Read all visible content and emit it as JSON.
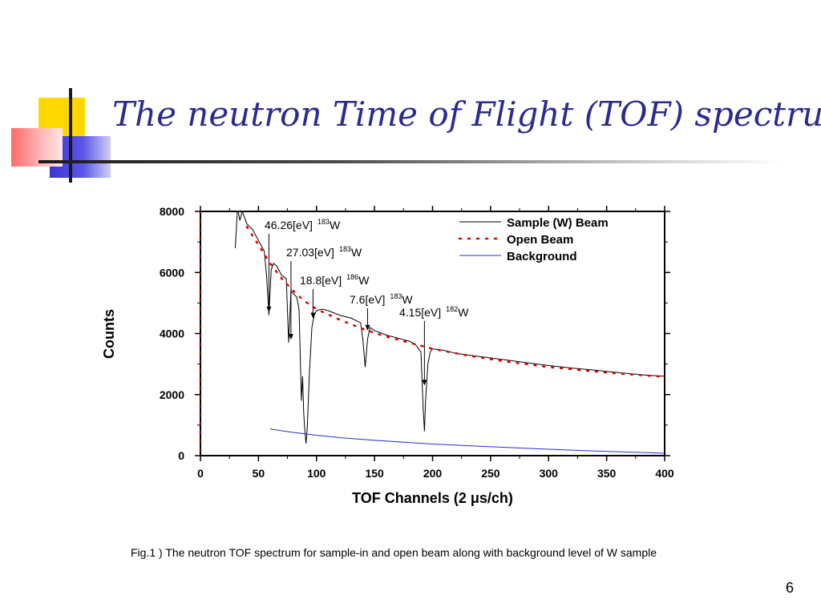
{
  "slide": {
    "title": "The neutron Time of Flight (TOF) spectrum",
    "caption": "Fig.1 ) The neutron TOF spectrum for sample-in and open beam along with background level of W sample",
    "page_number": "6"
  },
  "colors": {
    "title": "#2b2b8f",
    "sample": "#000000",
    "open_beam": "#e00000",
    "background": "#2a2ad8",
    "deco_yellow": "#ffd800",
    "deco_blue": "#3b35d8",
    "deco_red": "#ff6a6a"
  },
  "chart_data": {
    "type": "line",
    "xlabel": "TOF Channels (2 μs/ch)",
    "ylabel": "Counts",
    "xlim": [
      0,
      400
    ],
    "ylim": [
      0,
      8000
    ],
    "x_ticks": [
      "0",
      "50",
      "100",
      "150",
      "200",
      "250",
      "300",
      "350",
      "400"
    ],
    "y_ticks": [
      "0",
      "2000",
      "4000",
      "6000",
      "8000"
    ],
    "grid": false,
    "legend_position": "top-right",
    "series": [
      {
        "name": "Sample (W) Beam",
        "style": "solid",
        "x": [
          30,
          32,
          34,
          36,
          38,
          40,
          45,
          50,
          55,
          57,
          59,
          61,
          63,
          66,
          70,
          74,
          76,
          78,
          80,
          83,
          85,
          87,
          88,
          89,
          90,
          91,
          92,
          94,
          96,
          98,
          100,
          105,
          110,
          120,
          130,
          138,
          140,
          142,
          144,
          146,
          150,
          160,
          170,
          180,
          185,
          190,
          192,
          193,
          194,
          196,
          198,
          200,
          210,
          220,
          240,
          260,
          280,
          300,
          320,
          340,
          360,
          380,
          400
        ],
        "y": [
          6800,
          8100,
          7700,
          8000,
          7800,
          7600,
          7400,
          7050,
          6700,
          5900,
          4600,
          6100,
          6300,
          6200,
          5900,
          5800,
          3700,
          5400,
          5300,
          5200,
          4800,
          1800,
          2600,
          1400,
          800,
          400,
          900,
          2800,
          4200,
          4600,
          4750,
          4800,
          4750,
          4600,
          4500,
          4350,
          3800,
          2900,
          3800,
          4200,
          4100,
          3950,
          3850,
          3750,
          3650,
          3400,
          1500,
          800,
          1800,
          3000,
          3400,
          3500,
          3450,
          3350,
          3250,
          3150,
          3050,
          2950,
          2870,
          2800,
          2720,
          2650,
          2600
        ]
      },
      {
        "name": "Open Beam",
        "style": "dotted",
        "x": [
          40,
          50,
          60,
          70,
          80,
          90,
          100,
          120,
          140,
          160,
          180,
          200,
          230,
          260,
          300,
          350,
          400
        ],
        "y": [
          7500,
          6900,
          6300,
          5800,
          5400,
          5050,
          4800,
          4450,
          4150,
          3900,
          3700,
          3500,
          3280,
          3100,
          2900,
          2720,
          2580
        ]
      },
      {
        "name": "Background",
        "style": "solid",
        "x": [
          60,
          80,
          100,
          120,
          150,
          200,
          250,
          300,
          350,
          400
        ],
        "y": [
          870,
          760,
          670,
          590,
          500,
          380,
          290,
          210,
          140,
          80
        ]
      }
    ],
    "annotations": [
      {
        "energy": "46.26[eV]",
        "mass": "183",
        "element": "W",
        "x": 59,
        "y": 4700
      },
      {
        "energy": "27.03[eV]",
        "mass": "183",
        "element": "W",
        "x": 78,
        "y": 3800
      },
      {
        "energy": "18.8[eV]",
        "mass": "186",
        "element": "W",
        "x": 97,
        "y": 4500
      },
      {
        "energy": "7.6[eV]",
        "mass": "183",
        "element": "W",
        "x": 144,
        "y": 4100
      },
      {
        "energy": "4.15[eV]",
        "mass": "182",
        "element": "W",
        "x": 193,
        "y": 2300
      }
    ]
  }
}
